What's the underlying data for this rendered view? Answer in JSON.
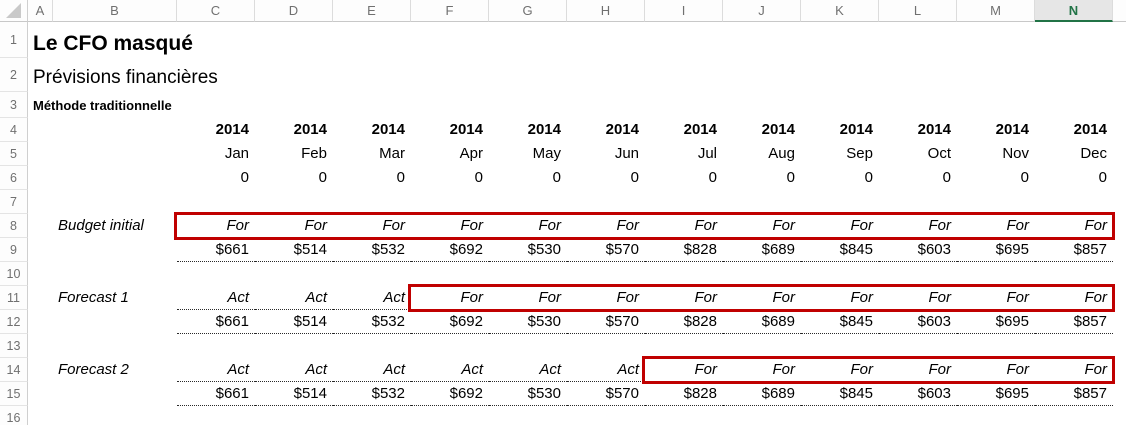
{
  "app": {
    "type": "excel-spreadsheet"
  },
  "colors": {
    "accent_green": "#217346",
    "highlight_red": "#C00000",
    "header_text": "#707070"
  },
  "header": {
    "title": "Le CFO masqué",
    "subtitle": "Prévisions financières",
    "method": "Méthode traditionnelle"
  },
  "grid": {
    "column_headers": [
      "A",
      "B",
      "C",
      "D",
      "E",
      "F",
      "G",
      "H",
      "I",
      "J",
      "K",
      "L",
      "M",
      "N"
    ],
    "selected_column": "N",
    "row_headers": [
      "1",
      "2",
      "3",
      "4",
      "5",
      "6",
      "7",
      "8",
      "9",
      "10",
      "11",
      "12",
      "13",
      "14",
      "15",
      "16"
    ],
    "years": [
      "2014",
      "2014",
      "2014",
      "2014",
      "2014",
      "2014",
      "2014",
      "2014",
      "2014",
      "2014",
      "2014",
      "2014"
    ],
    "months": [
      "Jan",
      "Feb",
      "Mar",
      "Apr",
      "May",
      "Jun",
      "Jul",
      "Aug",
      "Sep",
      "Oct",
      "Nov",
      "Dec"
    ],
    "zeros": [
      "0",
      "0",
      "0",
      "0",
      "0",
      "0",
      "0",
      "0",
      "0",
      "0",
      "0",
      "0"
    ],
    "sections": [
      {
        "label": "Budget initial",
        "status": [
          "For",
          "For",
          "For",
          "For",
          "For",
          "For",
          "For",
          "For",
          "For",
          "For",
          "For",
          "For"
        ],
        "values": [
          "$661",
          "$514",
          "$532",
          "$692",
          "$530",
          "$570",
          "$828",
          "$689",
          "$845",
          "$603",
          "$695",
          "$857"
        ],
        "highlight_range": "C8:N8"
      },
      {
        "label": "Forecast 1",
        "status": [
          "Act",
          "Act",
          "Act",
          "For",
          "For",
          "For",
          "For",
          "For",
          "For",
          "For",
          "For",
          "For"
        ],
        "values": [
          "$661",
          "$514",
          "$532",
          "$692",
          "$530",
          "$570",
          "$828",
          "$689",
          "$845",
          "$603",
          "$695",
          "$857"
        ],
        "highlight_range": "F11:N11"
      },
      {
        "label": "Forecast 2",
        "status": [
          "Act",
          "Act",
          "Act",
          "Act",
          "Act",
          "Act",
          "For",
          "For",
          "For",
          "For",
          "For",
          "For"
        ],
        "values": [
          "$661",
          "$514",
          "$532",
          "$692",
          "$530",
          "$570",
          "$828",
          "$689",
          "$845",
          "$603",
          "$695",
          "$857"
        ],
        "highlight_range": "I14:N14"
      }
    ]
  }
}
